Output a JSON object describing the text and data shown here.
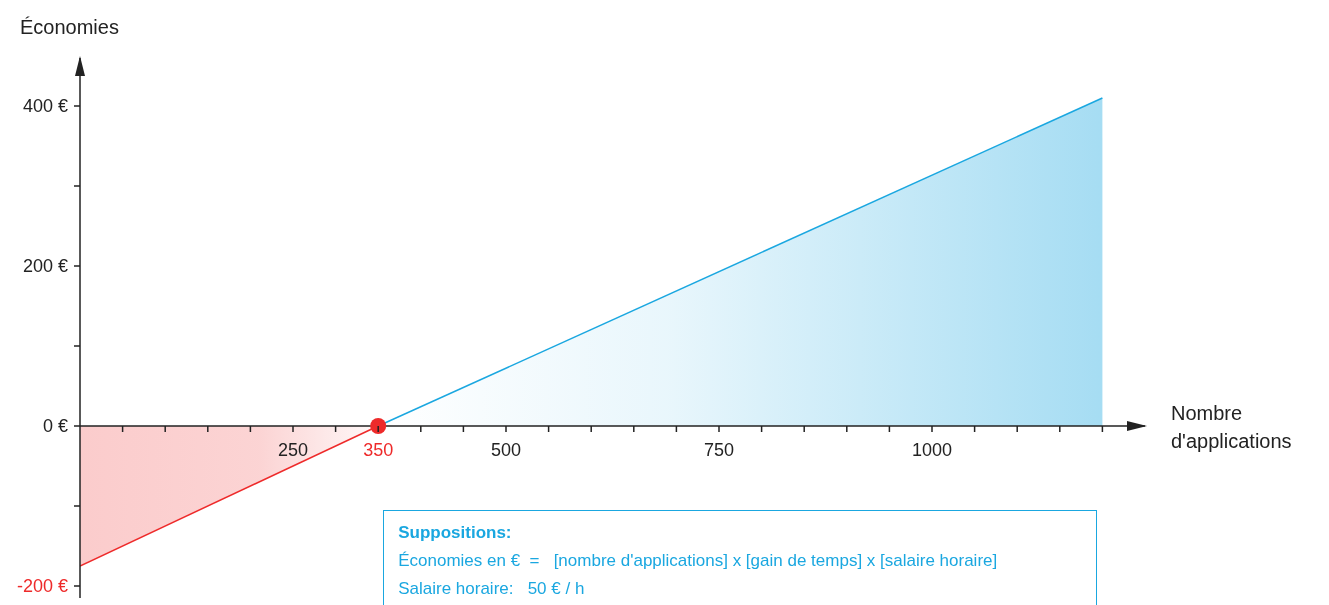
{
  "chart_data": {
    "type": "area",
    "xlabel": "Nombre d'applications",
    "ylabel": "Économies",
    "series": [
      {
        "color": "#ee2a2a",
        "x": [
          0,
          350
        ],
        "values": [
          -175,
          0
        ]
      },
      {
        "color": "#1aa7e0",
        "x": [
          350,
          1200
        ],
        "values": [
          0,
          410
        ]
      },
      {
        "type": "scatter",
        "color": "#ee2a2a",
        "x": [
          350
        ],
        "values": [
          0
        ]
      }
    ],
    "xlim": [
      0,
      1250
    ],
    "ylim": [
      -215,
      460
    ],
    "xticks": [
      {
        "value": 50,
        "label": null
      },
      {
        "value": 100,
        "label": null
      },
      {
        "value": 150,
        "label": null
      },
      {
        "value": 200,
        "label": null
      },
      250,
      {
        "value": 300,
        "label": null
      },
      350,
      {
        "value": 400,
        "label": null
      },
      {
        "value": 450,
        "label": null
      },
      500,
      {
        "value": 550,
        "label": null
      },
      {
        "value": 600,
        "label": null
      },
      {
        "value": 650,
        "label": null
      },
      {
        "value": 700,
        "label": null
      },
      750,
      {
        "value": 800,
        "label": null
      },
      {
        "value": 850,
        "label": null
      },
      {
        "value": 900,
        "label": null
      },
      {
        "value": 950,
        "label": null
      },
      1000,
      {
        "value": 1050,
        "label": null
      },
      {
        "value": 1100,
        "label": null
      },
      {
        "value": 1150,
        "label": null
      },
      {
        "value": 1200,
        "label": null
      }
    ],
    "yticks": [
      {
        "value": -200,
        "label": "-200 €"
      },
      {
        "value": -100,
        "label": null
      },
      {
        "value": 0,
        "label": "0 €"
      },
      {
        "value": 100,
        "label": null
      },
      {
        "value": 200,
        "label": "200 €"
      },
      {
        "value": 300,
        "label": null
      },
      {
        "value": 400,
        "label": "400 €"
      }
    ],
    "annotations": [
      "Suppositions:",
      "Économies en €  =   [nombre d'applications] x [gain de temps] x [salaire horaire]",
      "Salaire horaire:   50 € / h"
    ]
  }
}
